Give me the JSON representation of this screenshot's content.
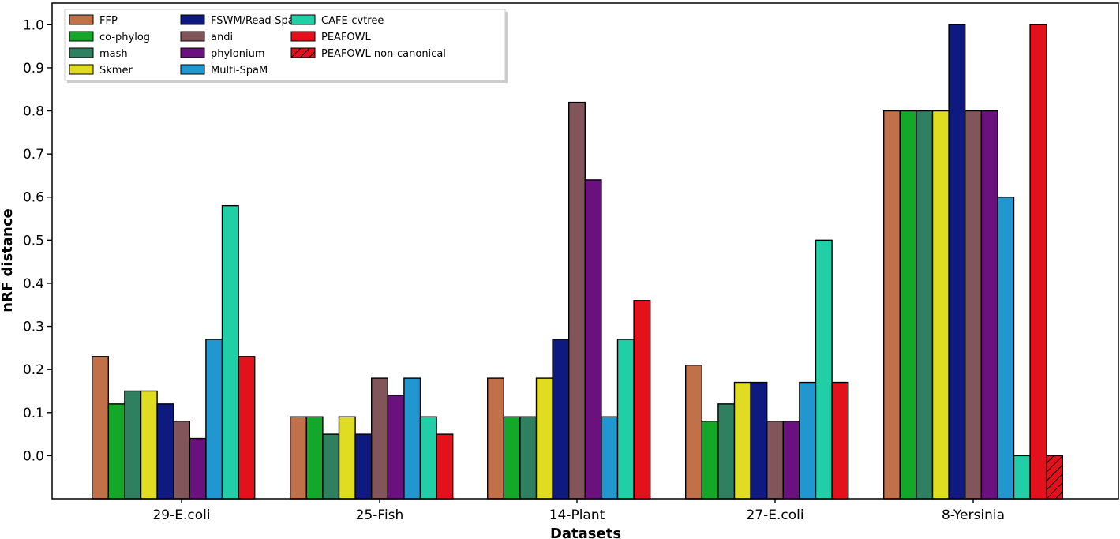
{
  "chart_data": {
    "type": "bar",
    "title": "",
    "xlabel": "Datasets",
    "ylabel": "nRF distance",
    "ylim": [
      -0.1,
      1.05
    ],
    "yticks": [
      "0.0",
      "0.1",
      "0.2",
      "0.3",
      "0.4",
      "0.5",
      "0.6",
      "0.7",
      "0.8",
      "0.9",
      "1.0"
    ],
    "categories": [
      "29-E.coli",
      "25-Fish",
      "14-Plant",
      "27-E.coli",
      "8-Yersinia"
    ],
    "legend_position": "top-left",
    "grid": false,
    "series": [
      {
        "name": "FFP",
        "color": "#c0714a",
        "values": [
          0.23,
          0.09,
          0.18,
          0.21,
          0.8
        ]
      },
      {
        "name": "co-phylog",
        "color": "#13a829",
        "values": [
          0.12,
          0.09,
          0.09,
          0.08,
          0.8
        ]
      },
      {
        "name": "mash",
        "color": "#2e8060",
        "values": [
          0.15,
          0.05,
          0.09,
          0.12,
          0.8
        ]
      },
      {
        "name": "Skmer",
        "color": "#e0dd20",
        "values": [
          0.15,
          0.09,
          0.18,
          0.17,
          0.8
        ]
      },
      {
        "name": "FSWM/Read-SpaM",
        "color": "#0e1a80",
        "values": [
          0.12,
          0.05,
          0.27,
          0.17,
          1.0
        ]
      },
      {
        "name": "andi",
        "color": "#82555a",
        "values": [
          0.08,
          0.18,
          0.82,
          0.08,
          0.8
        ]
      },
      {
        "name": "phylonium",
        "color": "#6a117e",
        "values": [
          0.04,
          0.14,
          0.64,
          0.08,
          0.8
        ]
      },
      {
        "name": "Multi-SpaM",
        "color": "#2196cf",
        "values": [
          0.27,
          0.18,
          0.09,
          0.17,
          0.6
        ]
      },
      {
        "name": "CAFE-cvtree",
        "color": "#20cfa6",
        "values": [
          0.58,
          0.09,
          0.27,
          0.5,
          0.0
        ]
      },
      {
        "name": "PEAFOWL",
        "color": "#e2111b",
        "values": [
          0.23,
          0.05,
          0.36,
          0.17,
          1.0
        ]
      },
      {
        "name": "PEAFOWL non-canonical",
        "color": "#e2111b",
        "hatched": true,
        "values": [
          null,
          null,
          null,
          null,
          0.0
        ]
      }
    ]
  }
}
